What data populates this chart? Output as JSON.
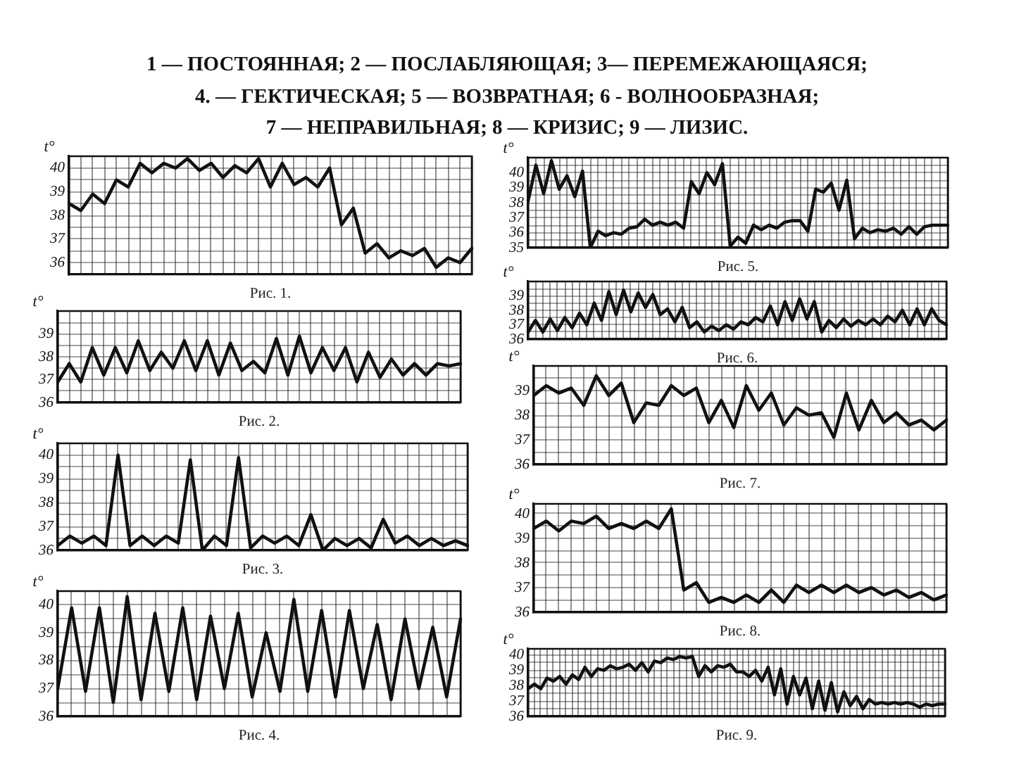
{
  "chart_data": [
    {
      "type": "line",
      "title": "1 — ПОСТОЯННАЯ; 2 — ПОСЛАБЛЯЮЩАЯ; 3— ПЕРЕМЕЖАЮЩАЯСЯ;\n4. — ГЕКТИЧЕСКАЯ; 5 — ВОЗВРАТНАЯ; 6 - ВОЛНООБРАЗНАЯ;\n7 — НЕПРАВИЛЬНАЯ; 8 — КРИЗИС; 9 — ЛИЗИС.",
      "xlabel": "Рис. 1.",
      "ylabel": "t°",
      "categories": [
        null,
        null,
        null,
        null,
        null,
        null,
        null,
        null,
        null,
        null,
        null,
        null,
        null,
        null,
        null,
        null,
        null,
        null,
        null,
        null,
        null,
        null,
        null,
        null,
        null,
        null,
        null,
        null,
        null,
        null,
        null,
        null,
        null,
        null,
        null
      ],
      "values": [
        38.5,
        38.2,
        38.9,
        38.5,
        39.5,
        39.2,
        40.2,
        39.8,
        40.2,
        40.0,
        40.4,
        39.9,
        40.2,
        39.6,
        40.1,
        39.8,
        40.4,
        39.2,
        40.2,
        39.3,
        39.6,
        39.2,
        40.0,
        37.6,
        38.3,
        36.4,
        36.8,
        36.2,
        36.5,
        36.3,
        36.6,
        35.8,
        36.2,
        36.0,
        36.6
      ],
      "color": "#111111",
      "ylim": [
        35.5,
        40.5
      ],
      "yticks": [
        36,
        {
          "value": 36.5,
          "label": null
        },
        37,
        {
          "value": 37.5,
          "label": null
        },
        38,
        {
          "value": 38.5,
          "label": null
        },
        39,
        {
          "value": 39.5,
          "label": null
        },
        40
      ],
      "grid": true,
      "tick_labels": "y"
    },
    {
      "type": "line",
      "xlabel": "Рис. 2.",
      "ylabel": "t°",
      "categories": [
        null,
        null,
        null,
        null,
        null,
        null,
        null,
        null,
        null,
        null,
        null,
        null,
        null,
        null,
        null,
        null,
        null,
        null,
        null,
        null,
        null,
        null,
        null,
        null,
        null,
        null,
        null,
        null,
        null,
        null,
        null,
        null,
        null,
        null,
        null,
        null
      ],
      "values": [
        36.9,
        37.7,
        36.9,
        38.4,
        37.2,
        38.4,
        37.3,
        38.7,
        37.4,
        38.2,
        37.5,
        38.7,
        37.4,
        38.7,
        37.2,
        38.6,
        37.4,
        37.8,
        37.3,
        38.8,
        37.2,
        38.9,
        37.3,
        38.4,
        37.4,
        38.4,
        36.9,
        38.2,
        37.1,
        37.9,
        37.2,
        37.7,
        37.2,
        37.7,
        37.6,
        37.7
      ],
      "color": "#111111",
      "ylim": [
        36,
        40
      ],
      "yticks": [
        36,
        {
          "value": 36.5,
          "label": null
        },
        37,
        {
          "value": 37.5,
          "label": null
        },
        38,
        {
          "value": 38.5,
          "label": null
        },
        39,
        {
          "value": 39.5,
          "label": null
        }
      ],
      "grid": true,
      "tick_labels": "y"
    },
    {
      "type": "line",
      "xlabel": "Рис. 3.",
      "ylabel": "t°",
      "categories": [
        null,
        null,
        null,
        null,
        null,
        null,
        null,
        null,
        null,
        null,
        null,
        null,
        null,
        null,
        null,
        null,
        null,
        null,
        null,
        null,
        null,
        null,
        null,
        null,
        null,
        null,
        null,
        null,
        null,
        null,
        null,
        null,
        null,
        null,
        null
      ],
      "values": [
        36.2,
        36.6,
        36.3,
        36.6,
        36.2,
        40.0,
        36.2,
        36.6,
        36.2,
        36.6,
        36.3,
        39.8,
        36.0,
        36.6,
        36.2,
        39.9,
        36.1,
        36.6,
        36.3,
        36.6,
        36.2,
        37.5,
        36.0,
        36.5,
        36.2,
        36.5,
        36.1,
        37.3,
        36.3,
        36.6,
        36.2,
        36.5,
        36.2,
        36.4,
        36.2
      ],
      "color": "#111111",
      "ylim": [
        36,
        40.5
      ],
      "yticks": [
        36,
        {
          "value": 36.5,
          "label": null
        },
        37,
        {
          "value": 37.5,
          "label": null
        },
        38,
        {
          "value": 38.5,
          "label": null
        },
        39,
        {
          "value": 39.5,
          "label": null
        },
        40
      ],
      "grid": true,
      "tick_labels": "y"
    },
    {
      "type": "line",
      "xlabel": "Рис. 4.",
      "ylabel": "t°",
      "categories": [
        null,
        null,
        null,
        null,
        null,
        null,
        null,
        null,
        null,
        null,
        null,
        null,
        null,
        null,
        null,
        null,
        null,
        null,
        null,
        null,
        null,
        null,
        null,
        null,
        null,
        null,
        null,
        null,
        null,
        null
      ],
      "values": [
        37.0,
        39.9,
        36.9,
        39.9,
        36.5,
        40.3,
        36.6,
        39.7,
        36.9,
        39.9,
        36.6,
        39.6,
        37.0,
        39.7,
        36.7,
        39.0,
        36.9,
        40.2,
        36.9,
        39.8,
        36.7,
        39.8,
        37.0,
        39.3,
        36.6,
        39.5,
        37.0,
        39.2,
        36.7,
        39.5
      ],
      "color": "#111111",
      "ylim": [
        36,
        40.5
      ],
      "yticks": [
        36,
        {
          "value": 36.5,
          "label": null
        },
        37,
        {
          "value": 37.5,
          "label": null
        },
        38,
        {
          "value": 38.5,
          "label": null
        },
        39,
        {
          "value": 39.5,
          "label": null
        },
        40
      ],
      "grid": true,
      "tick_labels": "y"
    },
    {
      "type": "line",
      "xlabel": "Рис. 5.",
      "ylabel": "t°",
      "categories": [
        null,
        null,
        null,
        null,
        null,
        null,
        null,
        null,
        null,
        null,
        null,
        null,
        null,
        null,
        null,
        null,
        null,
        null,
        null,
        null,
        null,
        null,
        null,
        null,
        null,
        null,
        null,
        null,
        null,
        null,
        null,
        null,
        null,
        null,
        null,
        null,
        null,
        null,
        null,
        null,
        null,
        null,
        null,
        null,
        null,
        null,
        null,
        null,
        null,
        null,
        null,
        null,
        null,
        null,
        null
      ],
      "values": [
        38.1,
        40.5,
        38.6,
        40.8,
        38.9,
        39.8,
        38.4,
        40.1,
        35.0,
        36.1,
        35.8,
        36.0,
        35.9,
        36.3,
        36.4,
        36.9,
        36.5,
        36.7,
        36.5,
        36.7,
        36.3,
        39.4,
        38.6,
        40.0,
        39.2,
        40.6,
        35.1,
        35.7,
        35.3,
        36.5,
        36.2,
        36.5,
        36.3,
        36.7,
        36.8,
        36.8,
        36.1,
        38.9,
        38.7,
        39.3,
        37.5,
        39.5,
        35.6,
        36.3,
        36.0,
        36.2,
        36.1,
        36.3,
        35.9,
        36.4,
        35.9,
        36.4,
        36.5,
        36.5,
        36.5
      ],
      "color": "#111111",
      "ylim": [
        35,
        41
      ],
      "yticks": [
        35,
        {
          "value": 35.5,
          "label": null
        },
        36,
        {
          "value": 36.5,
          "label": null
        },
        37,
        {
          "value": 37.5,
          "label": null
        },
        38,
        {
          "value": 38.5,
          "label": null
        },
        39,
        {
          "value": 39.5,
          "label": null
        },
        40,
        {
          "value": 40.5,
          "label": null
        }
      ],
      "grid": true,
      "tick_labels": "y"
    },
    {
      "type": "line",
      "xlabel": "Рис. 6.",
      "ylabel": "t°",
      "categories": [
        null,
        null,
        null,
        null,
        null,
        null,
        null,
        null,
        null,
        null,
        null,
        null,
        null,
        null,
        null,
        null,
        null,
        null,
        null,
        null,
        null,
        null,
        null,
        null,
        null,
        null,
        null,
        null,
        null,
        null,
        null,
        null,
        null,
        null,
        null,
        null,
        null,
        null,
        null,
        null,
        null,
        null,
        null,
        null,
        null,
        null,
        null,
        null,
        null,
        null,
        null,
        null,
        null,
        null,
        null,
        null,
        null,
        null
      ],
      "values": [
        36.5,
        37.3,
        36.5,
        37.4,
        36.6,
        37.5,
        36.8,
        37.8,
        37.0,
        38.5,
        37.3,
        39.3,
        37.7,
        39.4,
        37.9,
        39.2,
        38.2,
        39.1,
        37.7,
        38.1,
        37.2,
        38.2,
        36.8,
        37.2,
        36.5,
        36.9,
        36.6,
        37.0,
        36.7,
        37.2,
        37.0,
        37.5,
        37.2,
        38.3,
        37.0,
        38.6,
        37.3,
        38.8,
        37.4,
        38.6,
        36.5,
        37.3,
        36.8,
        37.4,
        36.9,
        37.3,
        37.0,
        37.4,
        37.0,
        37.6,
        37.2,
        38.0,
        37.0,
        38.1,
        37.0,
        38.1,
        37.3,
        37.0
      ],
      "color": "#111111",
      "ylim": [
        36,
        40
      ],
      "yticks": [
        36,
        {
          "value": 36.5,
          "label": null
        },
        37,
        {
          "value": 37.5,
          "label": null
        },
        38,
        {
          "value": 38.5,
          "label": null
        },
        39,
        {
          "value": 39.5,
          "label": null
        }
      ],
      "grid": true,
      "tick_labels": "y"
    },
    {
      "type": "line",
      "xlabel": "Рис. 7.",
      "ylabel": "t°",
      "categories": [
        null,
        null,
        null,
        null,
        null,
        null,
        null,
        null,
        null,
        null,
        null,
        null,
        null,
        null,
        null,
        null,
        null,
        null,
        null,
        null,
        null,
        null,
        null,
        null,
        null,
        null,
        null,
        null,
        null,
        null,
        null,
        null,
        null,
        null
      ],
      "values": [
        38.8,
        39.2,
        38.9,
        39.1,
        38.4,
        39.6,
        38.8,
        39.3,
        37.7,
        38.5,
        38.4,
        39.2,
        38.8,
        39.1,
        37.7,
        38.6,
        37.5,
        39.2,
        38.2,
        38.9,
        37.6,
        38.3,
        38.0,
        38.1,
        37.1,
        38.9,
        37.4,
        38.6,
        37.7,
        38.1,
        37.6,
        37.8,
        37.4,
        37.8
      ],
      "color": "#111111",
      "ylim": [
        36,
        40
      ],
      "yticks": [
        36,
        {
          "value": 36.5,
          "label": null
        },
        37,
        {
          "value": 37.5,
          "label": null
        },
        38,
        {
          "value": 38.5,
          "label": null
        },
        39,
        {
          "value": 39.5,
          "label": null
        }
      ],
      "grid": true,
      "tick_labels": "y"
    },
    {
      "type": "line",
      "xlabel": "Рис. 8.",
      "ylabel": "t°",
      "categories": [
        null,
        null,
        null,
        null,
        null,
        null,
        null,
        null,
        null,
        null,
        null,
        null,
        null,
        null,
        null,
        null,
        null,
        null,
        null,
        null,
        null,
        null,
        null,
        null,
        null,
        null,
        null,
        null,
        null,
        null,
        null,
        null,
        null,
        null
      ],
      "values": [
        39.4,
        39.7,
        39.3,
        39.7,
        39.6,
        39.9,
        39.4,
        39.6,
        39.4,
        39.7,
        39.4,
        40.2,
        36.9,
        37.2,
        36.4,
        36.6,
        36.4,
        36.7,
        36.4,
        36.9,
        36.4,
        37.1,
        36.8,
        37.1,
        36.8,
        37.1,
        36.8,
        37.0,
        36.7,
        36.9,
        36.6,
        36.8,
        36.5,
        36.7
      ],
      "color": "#111111",
      "ylim": [
        36,
        40.4
      ],
      "yticks": [
        36,
        {
          "value": 36.5,
          "label": null
        },
        37,
        {
          "value": 37.5,
          "label": null
        },
        38,
        {
          "value": 38.5,
          "label": null
        },
        39,
        {
          "value": 39.5,
          "label": null
        },
        40
      ],
      "grid": true,
      "tick_labels": "y"
    },
    {
      "type": "line",
      "xlabel": "Рис. 9.",
      "ylabel": "t°",
      "categories": [
        null,
        null,
        null,
        null,
        null,
        null,
        null,
        null,
        null,
        null,
        null,
        null,
        null,
        null,
        null,
        null,
        null,
        null,
        null,
        null,
        null,
        null,
        null,
        null,
        null,
        null,
        null,
        null,
        null,
        null,
        null,
        null,
        null,
        null,
        null,
        null,
        null,
        null,
        null,
        null,
        null,
        null,
        null,
        null,
        null,
        null,
        null,
        null,
        null,
        null,
        null,
        null,
        null,
        null,
        null,
        null,
        null,
        null,
        null,
        null,
        null,
        null,
        null,
        null,
        null,
        null,
        null
      ],
      "values": [
        37.8,
        38.1,
        37.8,
        38.5,
        38.3,
        38.6,
        38.1,
        38.7,
        38.4,
        39.2,
        38.6,
        39.1,
        39.0,
        39.3,
        39.1,
        39.2,
        39.4,
        39.0,
        39.5,
        38.9,
        39.6,
        39.5,
        39.8,
        39.7,
        39.9,
        39.8,
        39.9,
        38.6,
        39.3,
        38.9,
        39.3,
        39.2,
        39.4,
        38.9,
        38.9,
        38.6,
        39.0,
        38.3,
        39.2,
        37.4,
        39.1,
        36.8,
        38.6,
        37.4,
        38.5,
        36.5,
        38.3,
        36.4,
        38.2,
        36.3,
        37.6,
        36.7,
        37.3,
        36.5,
        37.1,
        36.8,
        36.9,
        36.8,
        36.9,
        36.8,
        36.9,
        36.8,
        36.6,
        36.8,
        36.7,
        36.8,
        36.8
      ],
      "color": "#111111",
      "ylim": [
        36,
        40.4
      ],
      "yticks": [
        36,
        {
          "value": 36.5,
          "label": null
        },
        37,
        {
          "value": 37.5,
          "label": null
        },
        38,
        {
          "value": 38.5,
          "label": null
        },
        39,
        {
          "value": 39.5,
          "label": null
        },
        40
      ],
      "grid": true,
      "tick_labels": "y"
    }
  ]
}
